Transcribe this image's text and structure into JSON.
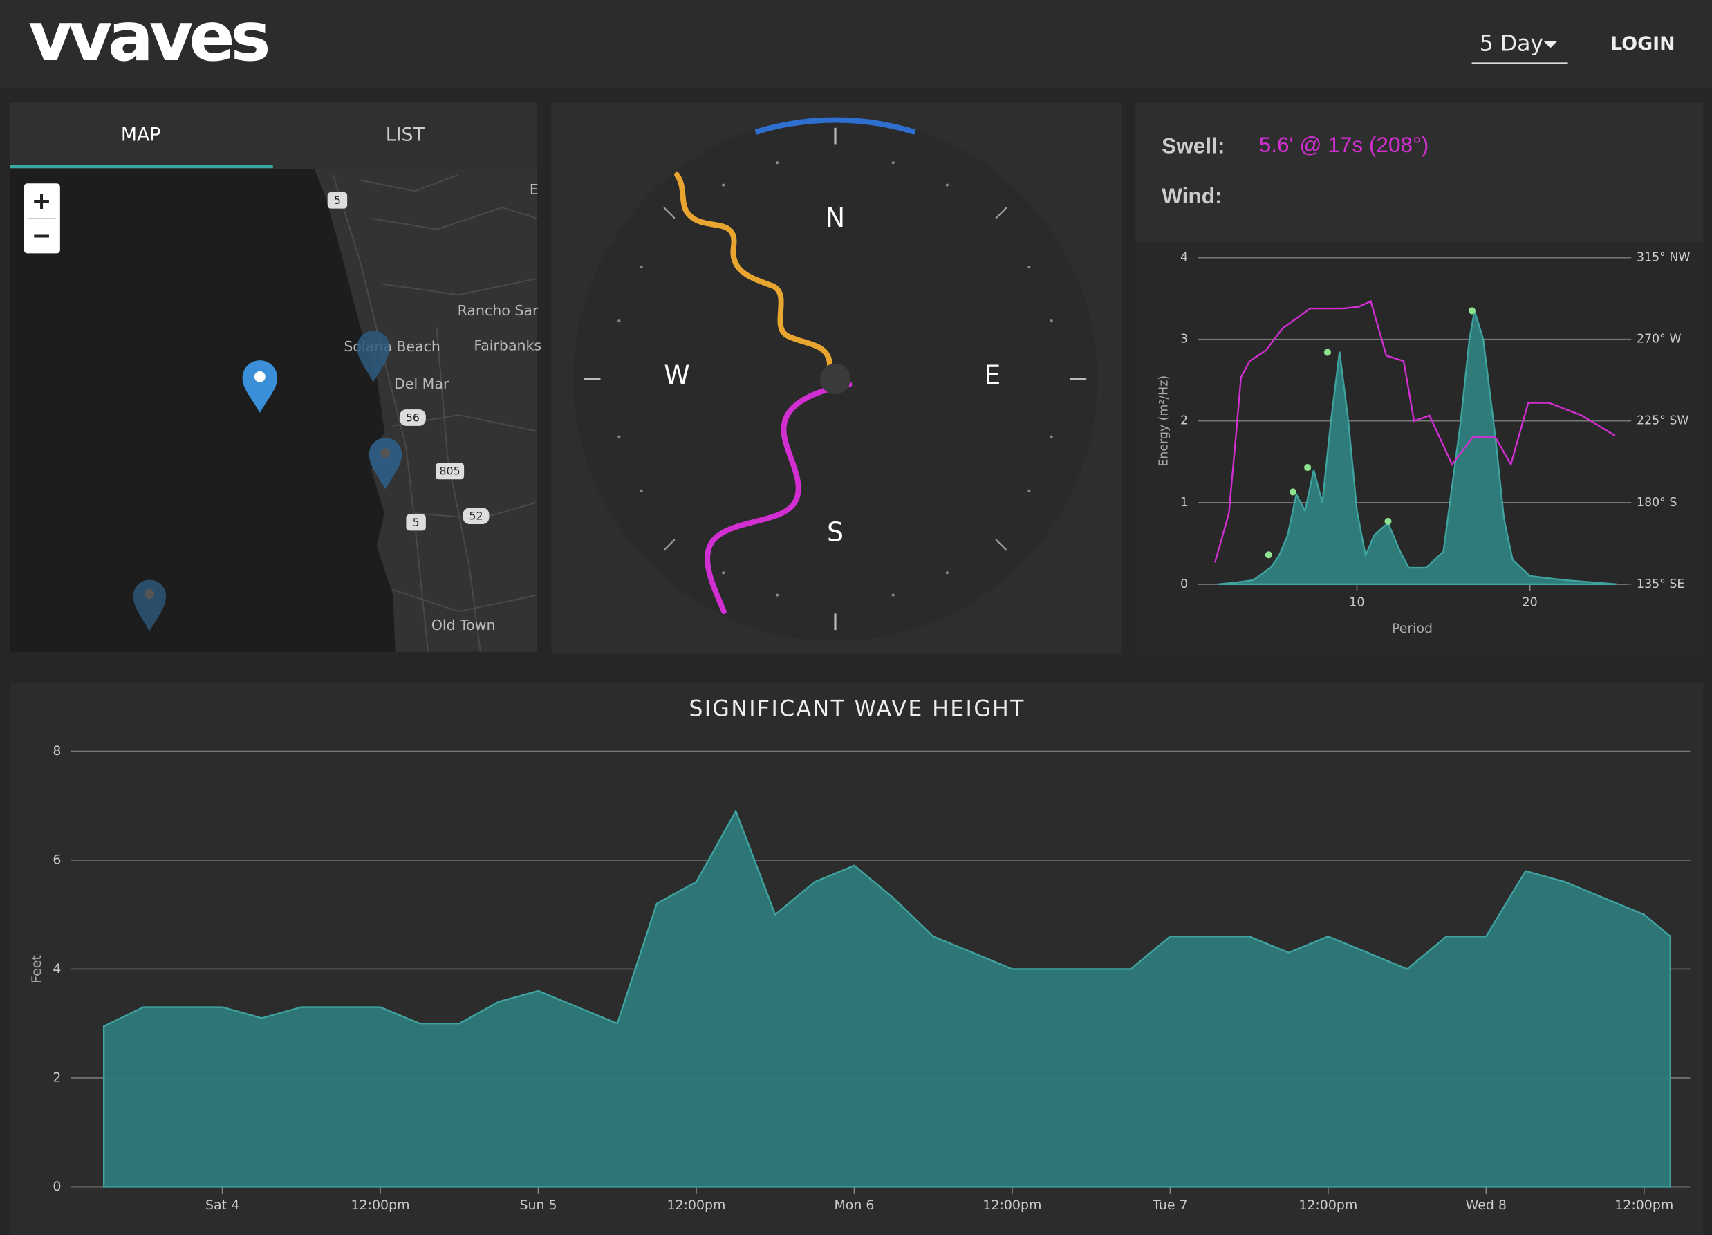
{
  "header": {
    "logo": "vvaves",
    "range_select": "5 Day",
    "login": "LOGIN"
  },
  "map_panel": {
    "tabs": [
      "MAP",
      "LIST"
    ],
    "zoom_in": "+",
    "zoom_out": "−",
    "place_labels": [
      "Rancho Sar",
      "Solana Beach",
      "Fairbanks",
      "Del Mar",
      "Old Town",
      "E"
    ],
    "route_shields": [
      "5",
      "56",
      "805",
      "52",
      "5"
    ]
  },
  "compass": {
    "labels": [
      "N",
      "W",
      "E",
      "S"
    ]
  },
  "conditions": {
    "swell_label": "Swell:",
    "swell_value": "5.6' @ 17s (208°)",
    "wind_label": "Wind:"
  },
  "chart_data": [
    {
      "type": "area",
      "xlabel": "Period",
      "ylabel": "Energy (m²/Hz)",
      "xlim": [
        0.8,
        25.6
      ],
      "xticks": [
        10,
        20
      ],
      "ylim": [
        0,
        4
      ],
      "yticks": [
        0,
        1,
        2,
        3,
        4
      ],
      "y2lim": [
        135,
        315
      ],
      "y2ticks": [
        {
          "value": 135,
          "label": "135° SE"
        },
        {
          "value": 180,
          "label": "180° S"
        },
        {
          "value": 225,
          "label": "225° SW"
        },
        {
          "value": 270,
          "label": "270° W"
        },
        {
          "value": 315,
          "label": "315° NW"
        }
      ],
      "grid": true,
      "series": [
        {
          "color": "#2f7f7d",
          "x": [
            2,
            3,
            4,
            5,
            5.5,
            6,
            6.5,
            7,
            7.5,
            8,
            8.5,
            9,
            9.5,
            10,
            10.5,
            11,
            11.8,
            12.5,
            13,
            14,
            15,
            16,
            16.5,
            16.8,
            17.3,
            18,
            18.5,
            19,
            20,
            22,
            25
          ],
          "values": [
            0,
            0.02,
            0.05,
            0.2,
            0.35,
            0.6,
            1.1,
            0.9,
            1.4,
            1.0,
            2.0,
            2.85,
            2.0,
            0.9,
            0.35,
            0.6,
            0.75,
            0.4,
            0.2,
            0.2,
            0.4,
            2.0,
            3.0,
            3.35,
            3.0,
            1.8,
            0.8,
            0.3,
            0.1,
            0.05,
            0
          ]
        },
        {
          "color": "#d22fd2",
          "axis": "y2",
          "x": [
            1.8,
            2.6,
            3.0,
            3.3,
            3.8,
            4.75,
            5.7,
            7.3,
            9.2,
            10.1,
            10.8,
            11.7,
            12.7,
            13.3,
            14.2,
            15.5,
            16.7,
            18,
            18.9,
            19.9,
            21.1,
            23,
            24.9
          ],
          "values": [
            147,
            174,
            216,
            249,
            258,
            264,
            276,
            287,
            287,
            288,
            291,
            261,
            258,
            225,
            228,
            201,
            216,
            216,
            201,
            235,
            235,
            228,
            217
          ]
        }
      ],
      "peaks": {
        "color": "#8fe38f",
        "x": [
          4.9,
          6.3,
          7.15,
          8.3,
          11.8,
          16.65
        ],
        "values": [
          0.36,
          1.13,
          1.43,
          2.84,
          0.77,
          3.35
        ]
      }
    },
    {
      "type": "area",
      "title": "SIGNIFICANT WAVE HEIGHT",
      "ylabel": "Feet",
      "color": "#2e7a7a",
      "xlim": [
        -11.5,
        111.5
      ],
      "ylim": [
        0,
        8
      ],
      "yticks": [
        0,
        2,
        4,
        6,
        8
      ],
      "grid": true,
      "xticks": [
        {
          "value": 0,
          "label": "Sat 4"
        },
        {
          "value": 12,
          "label": "12:00pm"
        },
        {
          "value": 24,
          "label": "Sun 5"
        },
        {
          "value": 36,
          "label": "12:00pm"
        },
        {
          "value": 48,
          "label": "Mon 6"
        },
        {
          "value": 60,
          "label": "12:00pm"
        },
        {
          "value": 72,
          "label": "Tue 7"
        },
        {
          "value": 84,
          "label": "12:00pm"
        },
        {
          "value": 96,
          "label": "Wed 8"
        },
        {
          "value": 108,
          "label": "12:00pm"
        }
      ],
      "x": [
        -9,
        -6,
        -3,
        0,
        3,
        6,
        9,
        12,
        15,
        18,
        21,
        24,
        27,
        30,
        33,
        36,
        39,
        42,
        45,
        48,
        51,
        54,
        57,
        60,
        63,
        66,
        69,
        72,
        75,
        78,
        81,
        84,
        87,
        90,
        93,
        96,
        99,
        102,
        105,
        108,
        110
      ],
      "values": [
        2.95,
        3.3,
        3.3,
        3.3,
        3.1,
        3.3,
        3.3,
        3.3,
        3.0,
        3.0,
        3.4,
        3.6,
        3.3,
        3.0,
        5.2,
        5.6,
        6.9,
        5.0,
        5.6,
        5.9,
        5.3,
        4.6,
        4.3,
        4.0,
        4.0,
        4.0,
        4.0,
        4.6,
        4.6,
        4.6,
        4.3,
        4.6,
        4.3,
        4.0,
        4.6,
        4.6,
        5.8,
        5.6,
        5.3,
        5.0,
        4.6
      ]
    }
  ]
}
